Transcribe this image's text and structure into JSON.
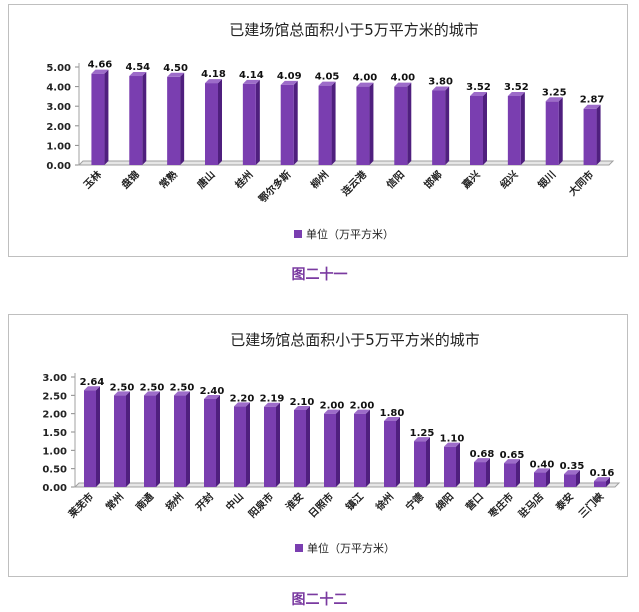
{
  "colors": {
    "bar_front": "#7a3eb0",
    "bar_side": "#4f1f7e",
    "bar_top": "#9d6cc9",
    "caption": "#7a3aa0"
  },
  "chart_data": [
    {
      "type": "bar",
      "title": "已建场馆总面积小于5万平方米的城市",
      "categories": [
        "玉林",
        "盘锦",
        "常熟",
        "唐山",
        "桂州",
        "鄂尔多斯",
        "柳州",
        "连云港",
        "信阳",
        "邯郸",
        "嘉兴",
        "绍兴",
        "银川",
        "大同市"
      ],
      "series": [
        {
          "name": "单位（万平方米）",
          "values": [
            4.66,
            4.54,
            4.5,
            4.18,
            4.14,
            4.09,
            4.05,
            4.0,
            4.0,
            3.8,
            3.52,
            3.52,
            3.25,
            2.87
          ]
        }
      ],
      "data_labels": [
        "4.66",
        "4.54",
        "4.50",
        "4.18",
        "4.14",
        "4.09",
        "4.05",
        "4.00",
        "4.00",
        "3.80",
        "3.52",
        "3.52",
        "3.25",
        "2.87"
      ],
      "ylim": [
        0,
        5
      ],
      "yticks": [
        "0.00",
        "1.00",
        "2.00",
        "3.00",
        "4.00",
        "5.00"
      ],
      "legend_position": "bottom",
      "grid": false
    },
    {
      "type": "bar",
      "title": "已建场馆总面积小于5万平方米的城市",
      "categories": [
        "莱芜市",
        "常州",
        "南通",
        "扬州",
        "开封",
        "中山",
        "阳泉市",
        "淮安",
        "日照市",
        "镇江",
        "徐州",
        "宁德",
        "绵阳",
        "营口",
        "枣庄市",
        "驻马店",
        "泰安",
        "三门峡"
      ],
      "series": [
        {
          "name": "单位（万平方米）",
          "values": [
            2.64,
            2.5,
            2.5,
            2.5,
            2.4,
            2.2,
            2.19,
            2.1,
            2.0,
            2.0,
            1.8,
            1.25,
            1.1,
            0.68,
            0.65,
            0.4,
            0.35,
            0.16
          ]
        }
      ],
      "data_labels": [
        "2.64",
        "2.50",
        "2.50",
        "2.50",
        "2.40",
        "2.20",
        "2.19",
        "2.10",
        "2.00",
        "2.00",
        "1.80",
        "1.25",
        "1.10",
        "0.68",
        "0.65",
        "0.40",
        "0.35",
        "0.16"
      ],
      "ylim": [
        0,
        3
      ],
      "yticks": [
        "0.00",
        "0.50",
        "1.00",
        "1.50",
        "2.00",
        "2.50",
        "3.00"
      ],
      "legend_position": "bottom",
      "grid": false
    }
  ],
  "captions": [
    "图二十一",
    "图二十二"
  ]
}
